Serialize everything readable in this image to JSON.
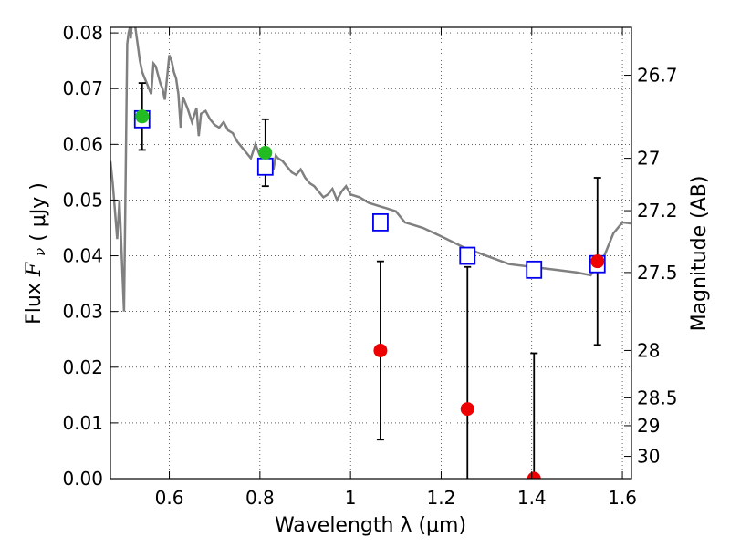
{
  "chart_data": {
    "type": "scatter",
    "xlabel": "Wavelength  λ (μm)",
    "ylabel_left_prefix": "Flux",
    "ylabel_left_symbol": "F",
    "ylabel_left_subscript": "ν",
    "ylabel_left_suffix": "( μJy )",
    "ylabel_right": "Magnitude (AB)",
    "xlim": [
      0.47,
      1.62
    ],
    "ylim": [
      0.0,
      0.081
    ],
    "grid": true,
    "x_ticks": [
      0.6,
      0.8,
      1.0,
      1.2,
      1.4,
      1.6
    ],
    "x_tick_labels": [
      "0.6",
      "0.8",
      "1",
      "1.2",
      "1.4",
      "1.6"
    ],
    "y_ticks": [
      0.0,
      0.01,
      0.02,
      0.03,
      0.04,
      0.05,
      0.06,
      0.07,
      0.08
    ],
    "y_tick_labels": [
      "0.00",
      "0.01",
      "0.02",
      "0.03",
      "0.04",
      "0.05",
      "0.06",
      "0.07",
      "0.08"
    ],
    "right_ticks": [
      {
        "flux": 0.0724,
        "label": "26.7"
      },
      {
        "flux": 0.0575,
        "label": "27"
      },
      {
        "flux": 0.0481,
        "label": "27.2"
      },
      {
        "flux": 0.037,
        "label": "27.5"
      },
      {
        "flux": 0.023,
        "label": "28"
      },
      {
        "flux": 0.0145,
        "label": "28.5"
      },
      {
        "flux": 0.0095,
        "label": "29"
      },
      {
        "flux": 0.004,
        "label": "30"
      }
    ],
    "colors": {
      "model": "#808080",
      "model_points": "#0000ee",
      "detections": "#22bb22",
      "non_detections": "#ee0000",
      "errorbars": "#000000"
    },
    "series": [
      {
        "kind": "line",
        "x": [
          0.47,
          0.475,
          0.48,
          0.485,
          0.49,
          0.495,
          0.5,
          0.503,
          0.507,
          0.51,
          0.513,
          0.515,
          0.518,
          0.52,
          0.525,
          0.53,
          0.535,
          0.54,
          0.545,
          0.55,
          0.555,
          0.56,
          0.565,
          0.57,
          0.575,
          0.58,
          0.585,
          0.59,
          0.595,
          0.6,
          0.605,
          0.61,
          0.615,
          0.62,
          0.625,
          0.63,
          0.635,
          0.64,
          0.65,
          0.66,
          0.665,
          0.67,
          0.68,
          0.69,
          0.7,
          0.71,
          0.72,
          0.73,
          0.74,
          0.75,
          0.76,
          0.77,
          0.78,
          0.79,
          0.8,
          0.81,
          0.82,
          0.825,
          0.83,
          0.835,
          0.84,
          0.85,
          0.86,
          0.87,
          0.88,
          0.89,
          0.9,
          0.91,
          0.92,
          0.93,
          0.94,
          0.95,
          0.96,
          0.97,
          0.98,
          0.99,
          1.0,
          1.02,
          1.04,
          1.06,
          1.08,
          1.1,
          1.12,
          1.14,
          1.16,
          1.2,
          1.25,
          1.3,
          1.35,
          1.4,
          1.45,
          1.5,
          1.53,
          1.56,
          1.58,
          1.6,
          1.62
        ],
        "y": [
          0.057,
          0.053,
          0.048,
          0.043,
          0.05,
          0.04,
          0.03,
          0.05,
          0.078,
          0.08,
          0.081,
          0.079,
          0.083,
          0.082,
          0.081,
          0.078,
          0.075,
          0.073,
          0.072,
          0.071,
          0.07,
          0.069,
          0.0745,
          0.074,
          0.0725,
          0.071,
          0.07,
          0.068,
          0.072,
          0.076,
          0.075,
          0.073,
          0.0718,
          0.069,
          0.063,
          0.0685,
          0.0675,
          0.0665,
          0.064,
          0.0665,
          0.0615,
          0.0655,
          0.066,
          0.0645,
          0.0635,
          0.063,
          0.064,
          0.0625,
          0.062,
          0.0605,
          0.0595,
          0.0585,
          0.0575,
          0.06,
          0.058,
          0.0575,
          0.056,
          0.057,
          0.0555,
          0.058,
          0.0575,
          0.057,
          0.056,
          0.055,
          0.0545,
          0.0555,
          0.054,
          0.053,
          0.0525,
          0.0515,
          0.0505,
          0.051,
          0.052,
          0.05,
          0.0515,
          0.0525,
          0.051,
          0.0505,
          0.0495,
          0.049,
          0.0485,
          0.048,
          0.046,
          0.0455,
          0.045,
          0.0435,
          0.0415,
          0.04,
          0.0385,
          0.038,
          0.0375,
          0.037,
          0.0365,
          0.04,
          0.044,
          0.046,
          0.0458
        ]
      },
      {
        "kind": "squares",
        "x": [
          0.54,
          0.812,
          1.066,
          1.258,
          1.405,
          1.545
        ],
        "y": [
          0.0645,
          0.056,
          0.046,
          0.04,
          0.0375,
          0.0385
        ]
      },
      {
        "kind": "points",
        "x": [
          0.54,
          0.812
        ],
        "y": [
          0.065,
          0.0585
        ],
        "err_low": [
          0.059,
          0.0525
        ],
        "err_high": [
          0.071,
          0.0645
        ]
      },
      {
        "kind": "points",
        "x": [
          1.066,
          1.258,
          1.405,
          1.545
        ],
        "y": [
          0.023,
          0.0125,
          0.0,
          0.039
        ],
        "err_low": [
          0.007,
          0.0,
          0.0,
          0.024
        ],
        "err_high": [
          0.039,
          0.038,
          0.0225,
          0.054
        ]
      }
    ]
  }
}
